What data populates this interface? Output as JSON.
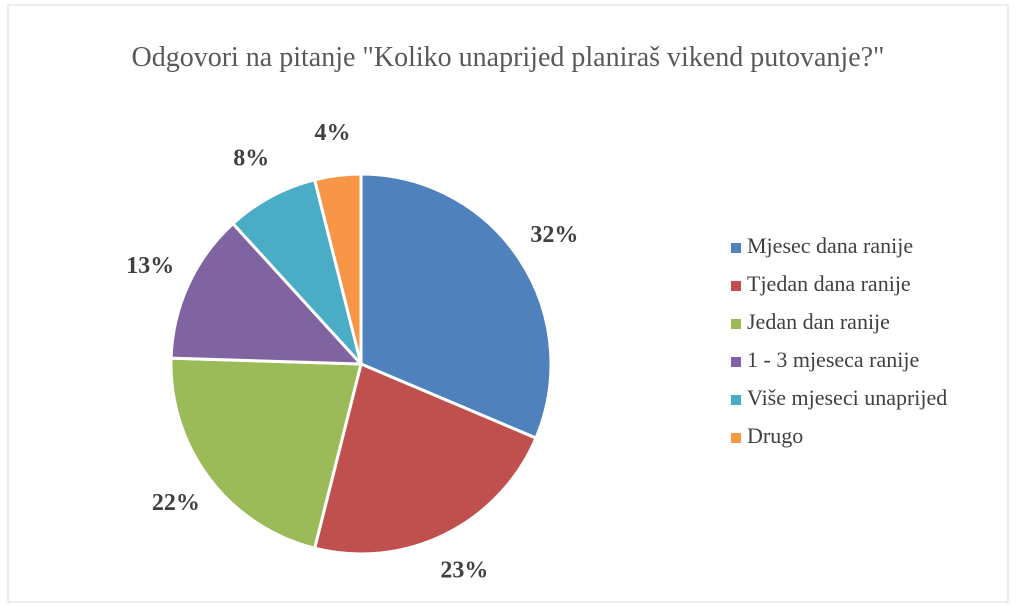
{
  "chart_data": {
    "type": "pie",
    "title": "Odgovori na pitanje \"Koliko unaprijed planiraš vikend putovanje?\"",
    "categories": [
      "Mjesec dana ranije",
      "Tjedan dana ranije",
      "Jedan dan ranije",
      "1 - 3 mjeseca ranije",
      "Više mjeseci unaprijed",
      "Drugo"
    ],
    "values": [
      32,
      23,
      22,
      13,
      8,
      4
    ],
    "colors": [
      "#4f81bd",
      "#c0504d",
      "#9bbb59",
      "#8064a2",
      "#4bacc6",
      "#f79646"
    ],
    "legend": "right"
  }
}
